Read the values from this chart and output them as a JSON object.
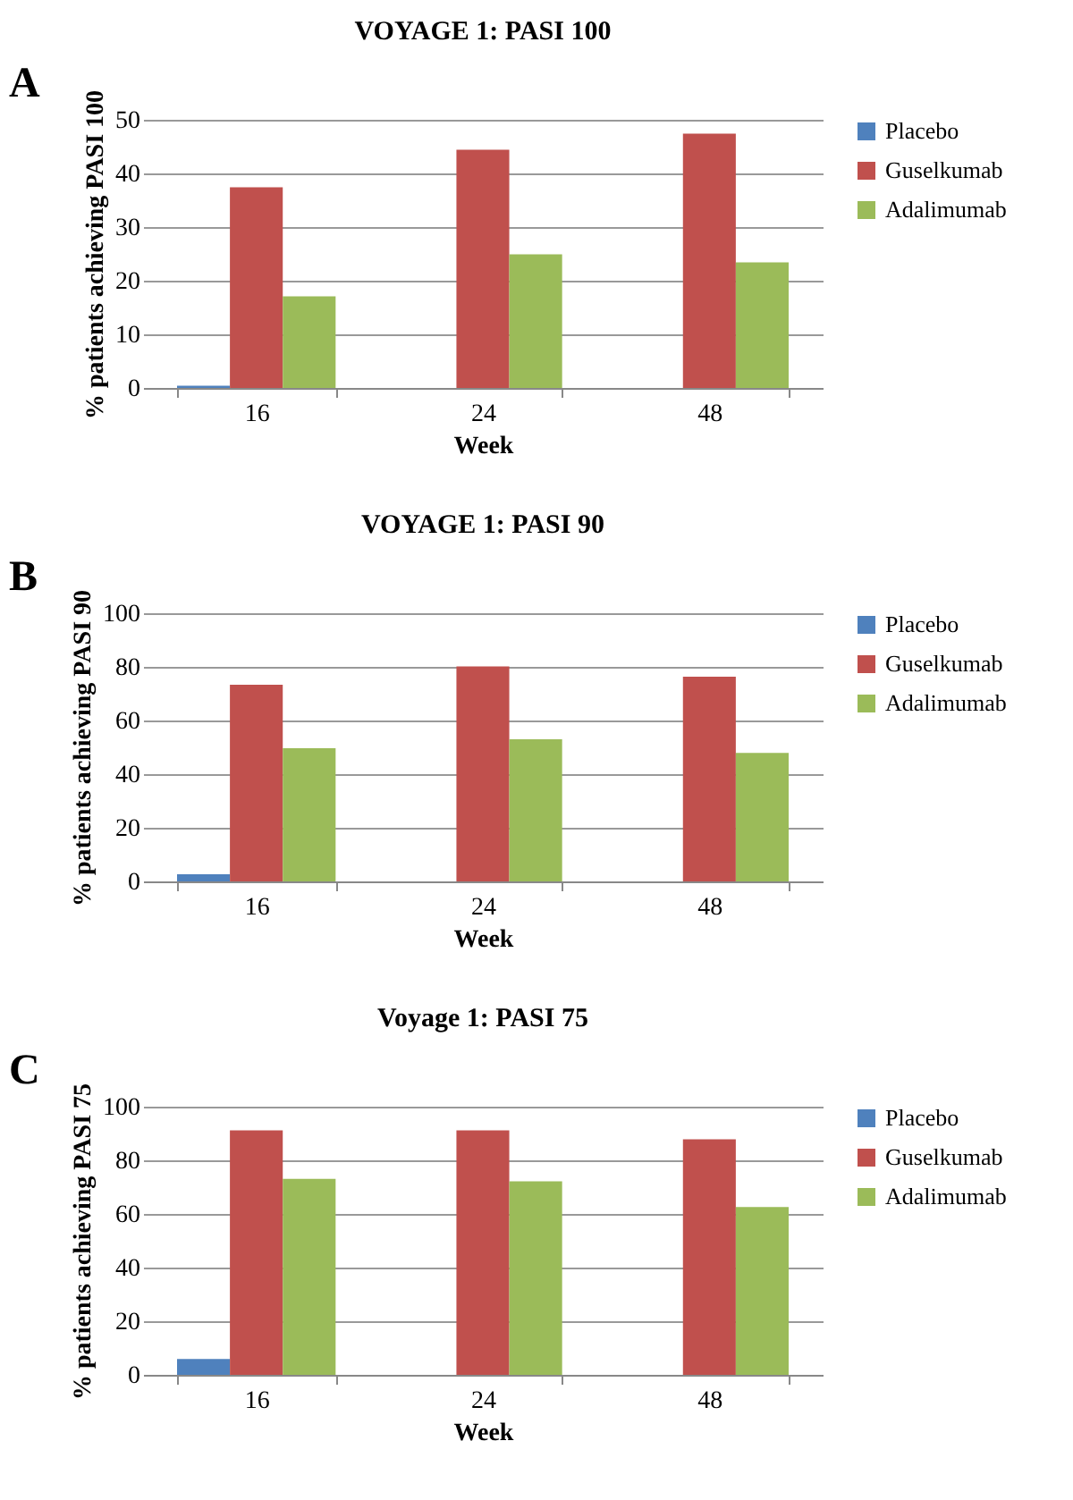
{
  "chart_data": [
    {
      "type": "bar",
      "title": "VOYAGE 1: PASI 100",
      "xlabel": "Week",
      "ylabel": "% patients achieving PASI 100",
      "annotations": [
        "A"
      ],
      "categories": [
        "16",
        "24",
        "48"
      ],
      "ylim": [
        0,
        50
      ],
      "yticks": [
        0,
        10,
        20,
        30,
        40,
        50
      ],
      "grid": "y",
      "legend": "right",
      "series": [
        {
          "name": "Placebo",
          "color": "#4f81bd",
          "values": [
            0.4,
            null,
            null
          ]
        },
        {
          "name": "Guselkumab",
          "color": "#c0504d",
          "values": [
            37.4,
            44.4,
            47.4
          ]
        },
        {
          "name": "Adalimumab",
          "color": "#9bbb59",
          "values": [
            17.1,
            24.9,
            23.4
          ]
        }
      ]
    },
    {
      "type": "bar",
      "title": "VOYAGE 1: PASI 90",
      "xlabel": "Week",
      "ylabel": "% patients achieving PASI 90",
      "annotations": [
        "B"
      ],
      "categories": [
        "16",
        "24",
        "48"
      ],
      "ylim": [
        0,
        100
      ],
      "yticks": [
        0,
        20,
        40,
        60,
        80,
        100
      ],
      "grid": "y",
      "legend": "right",
      "series": [
        {
          "name": "Placebo",
          "color": "#4f81bd",
          "values": [
            2.7,
            null,
            null
          ]
        },
        {
          "name": "Guselkumab",
          "color": "#c0504d",
          "values": [
            73.3,
            80.2,
            76.3
          ]
        },
        {
          "name": "Adalimumab",
          "color": "#9bbb59",
          "values": [
            49.7,
            53.0,
            47.9
          ]
        }
      ]
    },
    {
      "type": "bar",
      "title": "Voyage 1: PASI 75",
      "xlabel": "Week",
      "ylabel": "% patients achieving PASI 75",
      "annotations": [
        "C"
      ],
      "categories": [
        "16",
        "24",
        "48"
      ],
      "ylim": [
        0,
        100
      ],
      "yticks": [
        0,
        20,
        40,
        60,
        80,
        100
      ],
      "grid": "y",
      "legend": "right",
      "series": [
        {
          "name": "Placebo",
          "color": "#4f81bd",
          "values": [
            5.9,
            null,
            null
          ]
        },
        {
          "name": "Guselkumab",
          "color": "#c0504d",
          "values": [
            91.2,
            91.2,
            87.8
          ]
        },
        {
          "name": "Adalimumab",
          "color": "#9bbb59",
          "values": [
            73.1,
            72.2,
            62.6
          ]
        }
      ]
    }
  ]
}
